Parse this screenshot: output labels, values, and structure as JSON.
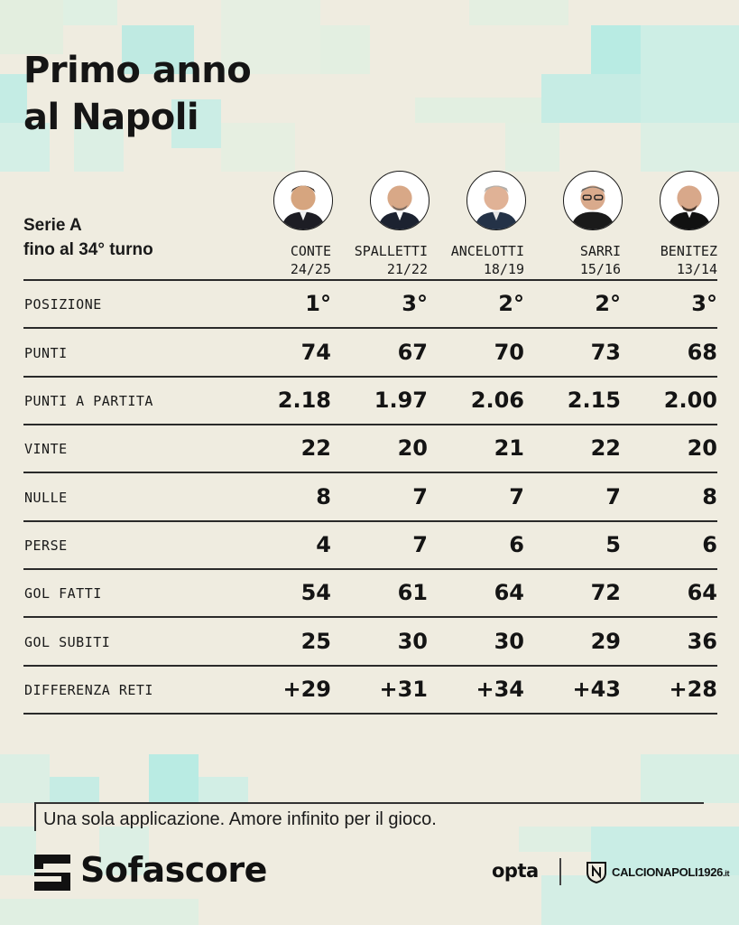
{
  "title_line1": "Primo anno",
  "title_line2": "al Napoli",
  "subtitle_line1": "Serie A",
  "subtitle_line2": "fino al 34° turno",
  "coaches": [
    {
      "name": "CONTE",
      "season": "24/25"
    },
    {
      "name": "SPALLETTI",
      "season": "21/22"
    },
    {
      "name": "ANCELOTTI",
      "season": "18/19"
    },
    {
      "name": "SARRI",
      "season": "15/16"
    },
    {
      "name": "BENITEZ",
      "season": "13/14"
    }
  ],
  "rows": [
    {
      "label": "POSIZIONE",
      "values": [
        "1°",
        "3°",
        "2°",
        "2°",
        "3°"
      ]
    },
    {
      "label": "PUNTI",
      "values": [
        "74",
        "67",
        "70",
        "73",
        "68"
      ]
    },
    {
      "label": "PUNTI A PARTITA",
      "values": [
        "2.18",
        "1.97",
        "2.06",
        "2.15",
        "2.00"
      ]
    },
    {
      "label": "VINTE",
      "values": [
        "22",
        "20",
        "21",
        "22",
        "20"
      ]
    },
    {
      "label": "NULLE",
      "values": [
        "8",
        "7",
        "7",
        "7",
        "8"
      ]
    },
    {
      "label": "PERSE",
      "values": [
        "4",
        "7",
        "6",
        "5",
        "6"
      ]
    },
    {
      "label": "GOL FATTI",
      "values": [
        "54",
        "61",
        "64",
        "72",
        "64"
      ]
    },
    {
      "label": "GOL SUBITI",
      "values": [
        "25",
        "30",
        "30",
        "29",
        "36"
      ]
    },
    {
      "label": "DIFFERENZA RETI",
      "values": [
        "+29",
        "+31",
        "+34",
        "+43",
        "+28"
      ]
    }
  ],
  "tagline": "Una sola applicazione. Amore infinito per il gioco.",
  "brand": "Sofascore",
  "partner_opta": "opta",
  "partner_site": "CALCIONAPOLI1926",
  "partner_site_suffix": ".it",
  "colors": {
    "background": "#efece0",
    "tile_light": "#cfeee6",
    "tile_mid": "#b9ebe3",
    "text": "#1a1a1a"
  }
}
